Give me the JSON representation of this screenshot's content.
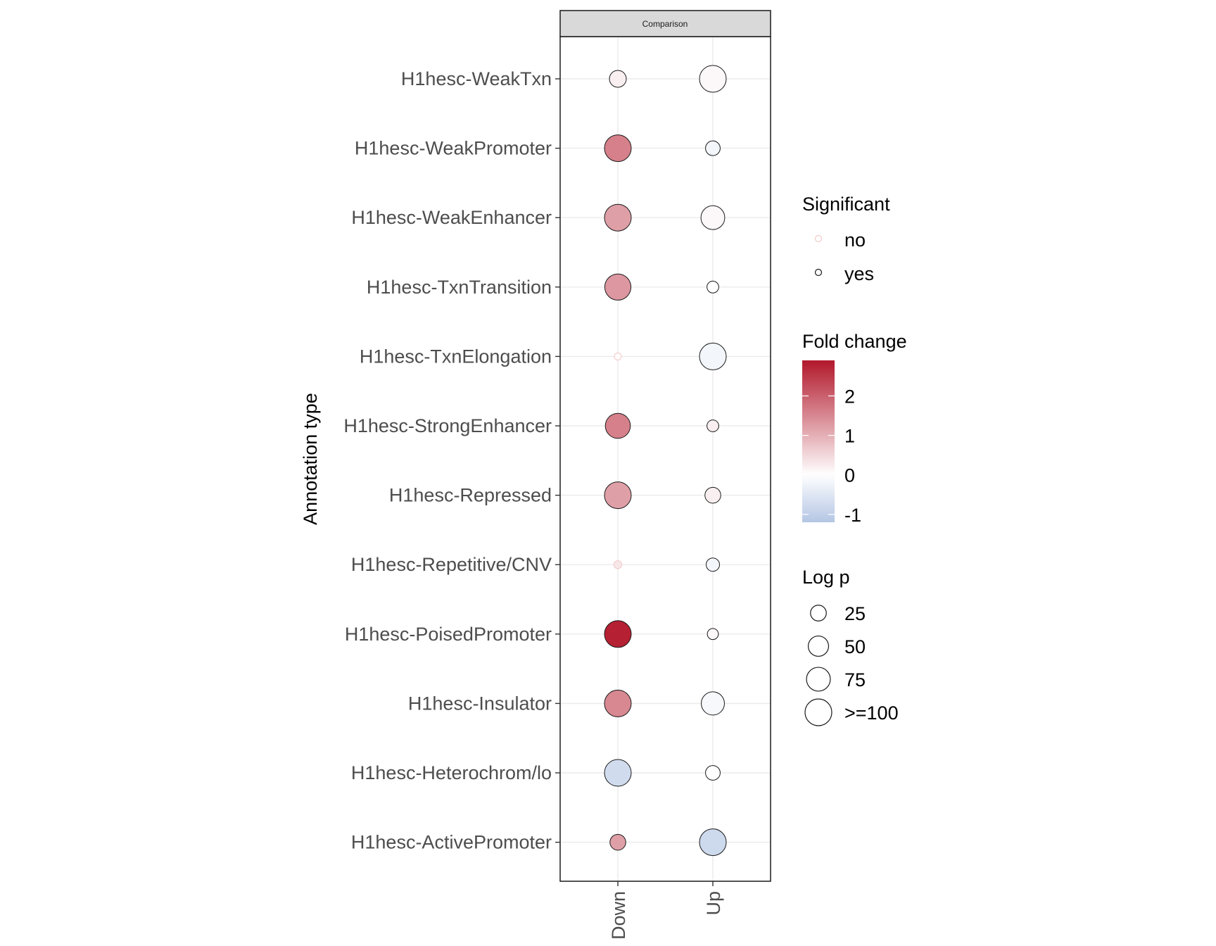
{
  "chart_data": {
    "type": "scatter",
    "facet_label": "Comparison",
    "ylabel": "Annotation type",
    "xlabel": "",
    "x_categories": [
      "Down",
      "Up"
    ],
    "y_categories": [
      "H1hesc-WeakTxn",
      "H1hesc-WeakPromoter",
      "H1hesc-WeakEnhancer",
      "H1hesc-TxnTransition",
      "H1hesc-TxnElongation",
      "H1hesc-StrongEnhancer",
      "H1hesc-Repressed",
      "H1hesc-Repetitive/CNV",
      "H1hesc-PoisedPromoter",
      "H1hesc-Insulator",
      "H1hesc-Heterochrom/lo",
      "H1hesc-ActivePromoter"
    ],
    "points": [
      {
        "y": "H1hesc-WeakTxn",
        "x": "Down",
        "fold_change": 0.2,
        "log_p": 30,
        "significant": "yes"
      },
      {
        "y": "H1hesc-WeakTxn",
        "x": "Up",
        "fold_change": 0.1,
        "log_p": 100,
        "significant": "yes"
      },
      {
        "y": "H1hesc-WeakPromoter",
        "x": "Down",
        "fold_change": 1.6,
        "log_p": 100,
        "significant": "yes"
      },
      {
        "y": "H1hesc-WeakPromoter",
        "x": "Up",
        "fold_change": -0.2,
        "log_p": 20,
        "significant": "yes"
      },
      {
        "y": "H1hesc-WeakEnhancer",
        "x": "Down",
        "fold_change": 1.2,
        "log_p": 100,
        "significant": "yes"
      },
      {
        "y": "H1hesc-WeakEnhancer",
        "x": "Up",
        "fold_change": 0.1,
        "log_p": 75,
        "significant": "yes"
      },
      {
        "y": "H1hesc-TxnTransition",
        "x": "Down",
        "fold_change": 1.3,
        "log_p": 95,
        "significant": "yes"
      },
      {
        "y": "H1hesc-TxnTransition",
        "x": "Up",
        "fold_change": 0.0,
        "log_p": 10,
        "significant": "yes"
      },
      {
        "y": "H1hesc-TxnElongation",
        "x": "Down",
        "fold_change": 0.05,
        "log_p": 1,
        "significant": "no"
      },
      {
        "y": "H1hesc-TxnElongation",
        "x": "Up",
        "fold_change": -0.2,
        "log_p": 100,
        "significant": "yes"
      },
      {
        "y": "H1hesc-StrongEnhancer",
        "x": "Down",
        "fold_change": 1.6,
        "log_p": 85,
        "significant": "yes"
      },
      {
        "y": "H1hesc-StrongEnhancer",
        "x": "Up",
        "fold_change": 0.2,
        "log_p": 10,
        "significant": "yes"
      },
      {
        "y": "H1hesc-Repressed",
        "x": "Down",
        "fold_change": 1.2,
        "log_p": 100,
        "significant": "yes"
      },
      {
        "y": "H1hesc-Repressed",
        "x": "Up",
        "fold_change": 0.2,
        "log_p": 25,
        "significant": "yes"
      },
      {
        "y": "H1hesc-Repetitive/CNV",
        "x": "Down",
        "fold_change": 0.3,
        "log_p": 2,
        "significant": "no"
      },
      {
        "y": "H1hesc-Repetitive/CNV",
        "x": "Up",
        "fold_change": -0.2,
        "log_p": 15,
        "significant": "yes"
      },
      {
        "y": "H1hesc-PoisedPromoter",
        "x": "Down",
        "fold_change": 2.8,
        "log_p": 100,
        "significant": "yes"
      },
      {
        "y": "H1hesc-PoisedPromoter",
        "x": "Up",
        "fold_change": 0.1,
        "log_p": 8,
        "significant": "yes"
      },
      {
        "y": "H1hesc-Insulator",
        "x": "Down",
        "fold_change": 1.5,
        "log_p": 100,
        "significant": "yes"
      },
      {
        "y": "H1hesc-Insulator",
        "x": "Up",
        "fold_change": -0.15,
        "log_p": 70,
        "significant": "yes"
      },
      {
        "y": "H1hesc-Heterochrom/lo",
        "x": "Down",
        "fold_change": -0.75,
        "log_p": 100,
        "significant": "yes"
      },
      {
        "y": "H1hesc-Heterochrom/lo",
        "x": "Up",
        "fold_change": 0.0,
        "log_p": 20,
        "significant": "yes"
      },
      {
        "y": "H1hesc-ActivePromoter",
        "x": "Down",
        "fold_change": 1.2,
        "log_p": 25,
        "significant": "yes"
      },
      {
        "y": "H1hesc-ActivePromoter",
        "x": "Up",
        "fold_change": -0.8,
        "log_p": 100,
        "significant": "yes"
      }
    ],
    "grid": true,
    "legend_placement": "right",
    "legends": {
      "significant": {
        "title": "Significant",
        "items": [
          "no",
          "yes"
        ]
      },
      "fold_change": {
        "title": "Fold change",
        "ticks": [
          2,
          1,
          0,
          -1
        ],
        "range": [
          -1.2,
          2.9
        ]
      },
      "log_p": {
        "title": "Log p",
        "items": [
          "25",
          "50",
          "75",
          ">=100"
        ],
        "values": [
          25,
          50,
          75,
          100
        ]
      }
    },
    "colors": {
      "low": "#b4c6e4",
      "mid": "#ffffff",
      "high": "#b2182b",
      "panel_border": "#1a1a1a",
      "strip_fill": "#d9d9d9",
      "grid": "#ebebeb",
      "tick_text": "#4d4d4d"
    }
  }
}
